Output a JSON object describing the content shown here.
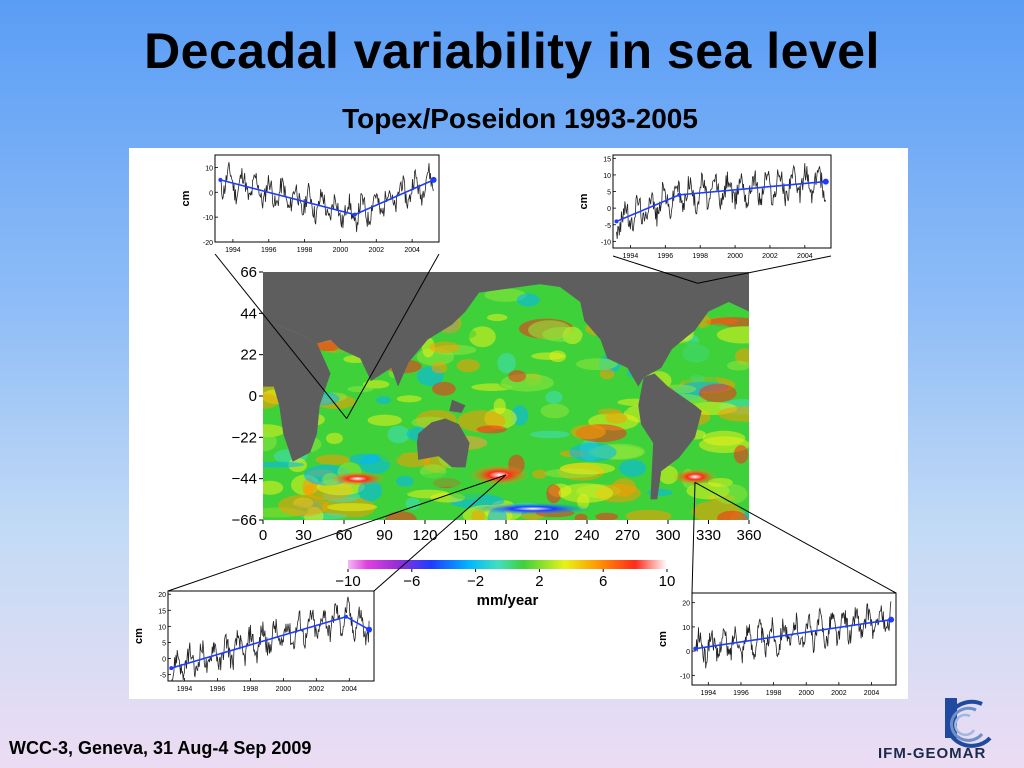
{
  "slide": {
    "title": "Decadal variability in sea level",
    "subtitle": "Topex/Poseidon 1993-2005",
    "footer": "WCC-3, Geneva, 31 Aug-4 Sep 2009",
    "logo_text": "IFM-GEOMAR"
  },
  "colors": {
    "land": "#5e5e5e",
    "trend_line": "#1e3cff",
    "series_line": "#222222"
  },
  "chart_data": [
    {
      "type": "heatmap",
      "title": "",
      "xlabel": "",
      "ylabel": "",
      "x_ticks": [
        "0",
        "30",
        "60",
        "90",
        "120",
        "150",
        "180",
        "210",
        "240",
        "270",
        "300",
        "330",
        "360"
      ],
      "y_ticks": [
        "66",
        "44",
        "22",
        "0",
        "−22",
        "−44",
        "−66"
      ],
      "xlim": [
        0,
        360
      ],
      "ylim": [
        -66,
        66
      ],
      "colorbar": {
        "label": "mm/year",
        "ticks": [
          "−10",
          "−6",
          "−2",
          "2",
          "6",
          "10"
        ],
        "range": [
          -10,
          10
        ]
      }
    },
    {
      "type": "line",
      "position": "top-left",
      "ylabel": "cm",
      "x_ticks": [
        "1994",
        "1996",
        "1998",
        "2000",
        "2002",
        "2004"
      ],
      "y_ticks": [
        "10",
        "0",
        "-10",
        "-20"
      ],
      "xlim": [
        1993,
        2005.5
      ],
      "ylim": [
        -20,
        15
      ],
      "trend": [
        [
          1993.3,
          5
        ],
        [
          2000.8,
          -9
        ],
        [
          2005.2,
          5
        ]
      ]
    },
    {
      "type": "line",
      "position": "top-right",
      "ylabel": "cm",
      "x_ticks": [
        "1994",
        "1996",
        "1998",
        "2000",
        "2002",
        "2004"
      ],
      "y_ticks": [
        "15",
        "10",
        "5",
        "0",
        "-5",
        "-10"
      ],
      "xlim": [
        1993,
        2005.5
      ],
      "ylim": [
        -12,
        16
      ],
      "trend": [
        [
          1993.2,
          -4
        ],
        [
          1996.8,
          4
        ],
        [
          2005.2,
          8
        ]
      ]
    },
    {
      "type": "line",
      "position": "bottom-left",
      "ylabel": "cm",
      "x_ticks": [
        "1994",
        "1996",
        "1998",
        "2000",
        "2002",
        "2004"
      ],
      "y_ticks": [
        "20",
        "15",
        "10",
        "5",
        "0",
        "-5"
      ],
      "xlim": [
        1993,
        2005.5
      ],
      "ylim": [
        -7,
        21
      ],
      "trend": [
        [
          1993.2,
          -3
        ],
        [
          2003.8,
          13
        ],
        [
          2005.2,
          9
        ]
      ]
    },
    {
      "type": "line",
      "position": "bottom-right",
      "ylabel": "cm",
      "x_ticks": [
        "1994",
        "1996",
        "1998",
        "2000",
        "2002",
        "2004"
      ],
      "y_ticks": [
        "20",
        "10",
        "0",
        "-10"
      ],
      "xlim": [
        1993,
        2005.5
      ],
      "ylim": [
        -14,
        24
      ],
      "trend": [
        [
          1993.2,
          1
        ],
        [
          2005.2,
          13
        ]
      ]
    }
  ]
}
